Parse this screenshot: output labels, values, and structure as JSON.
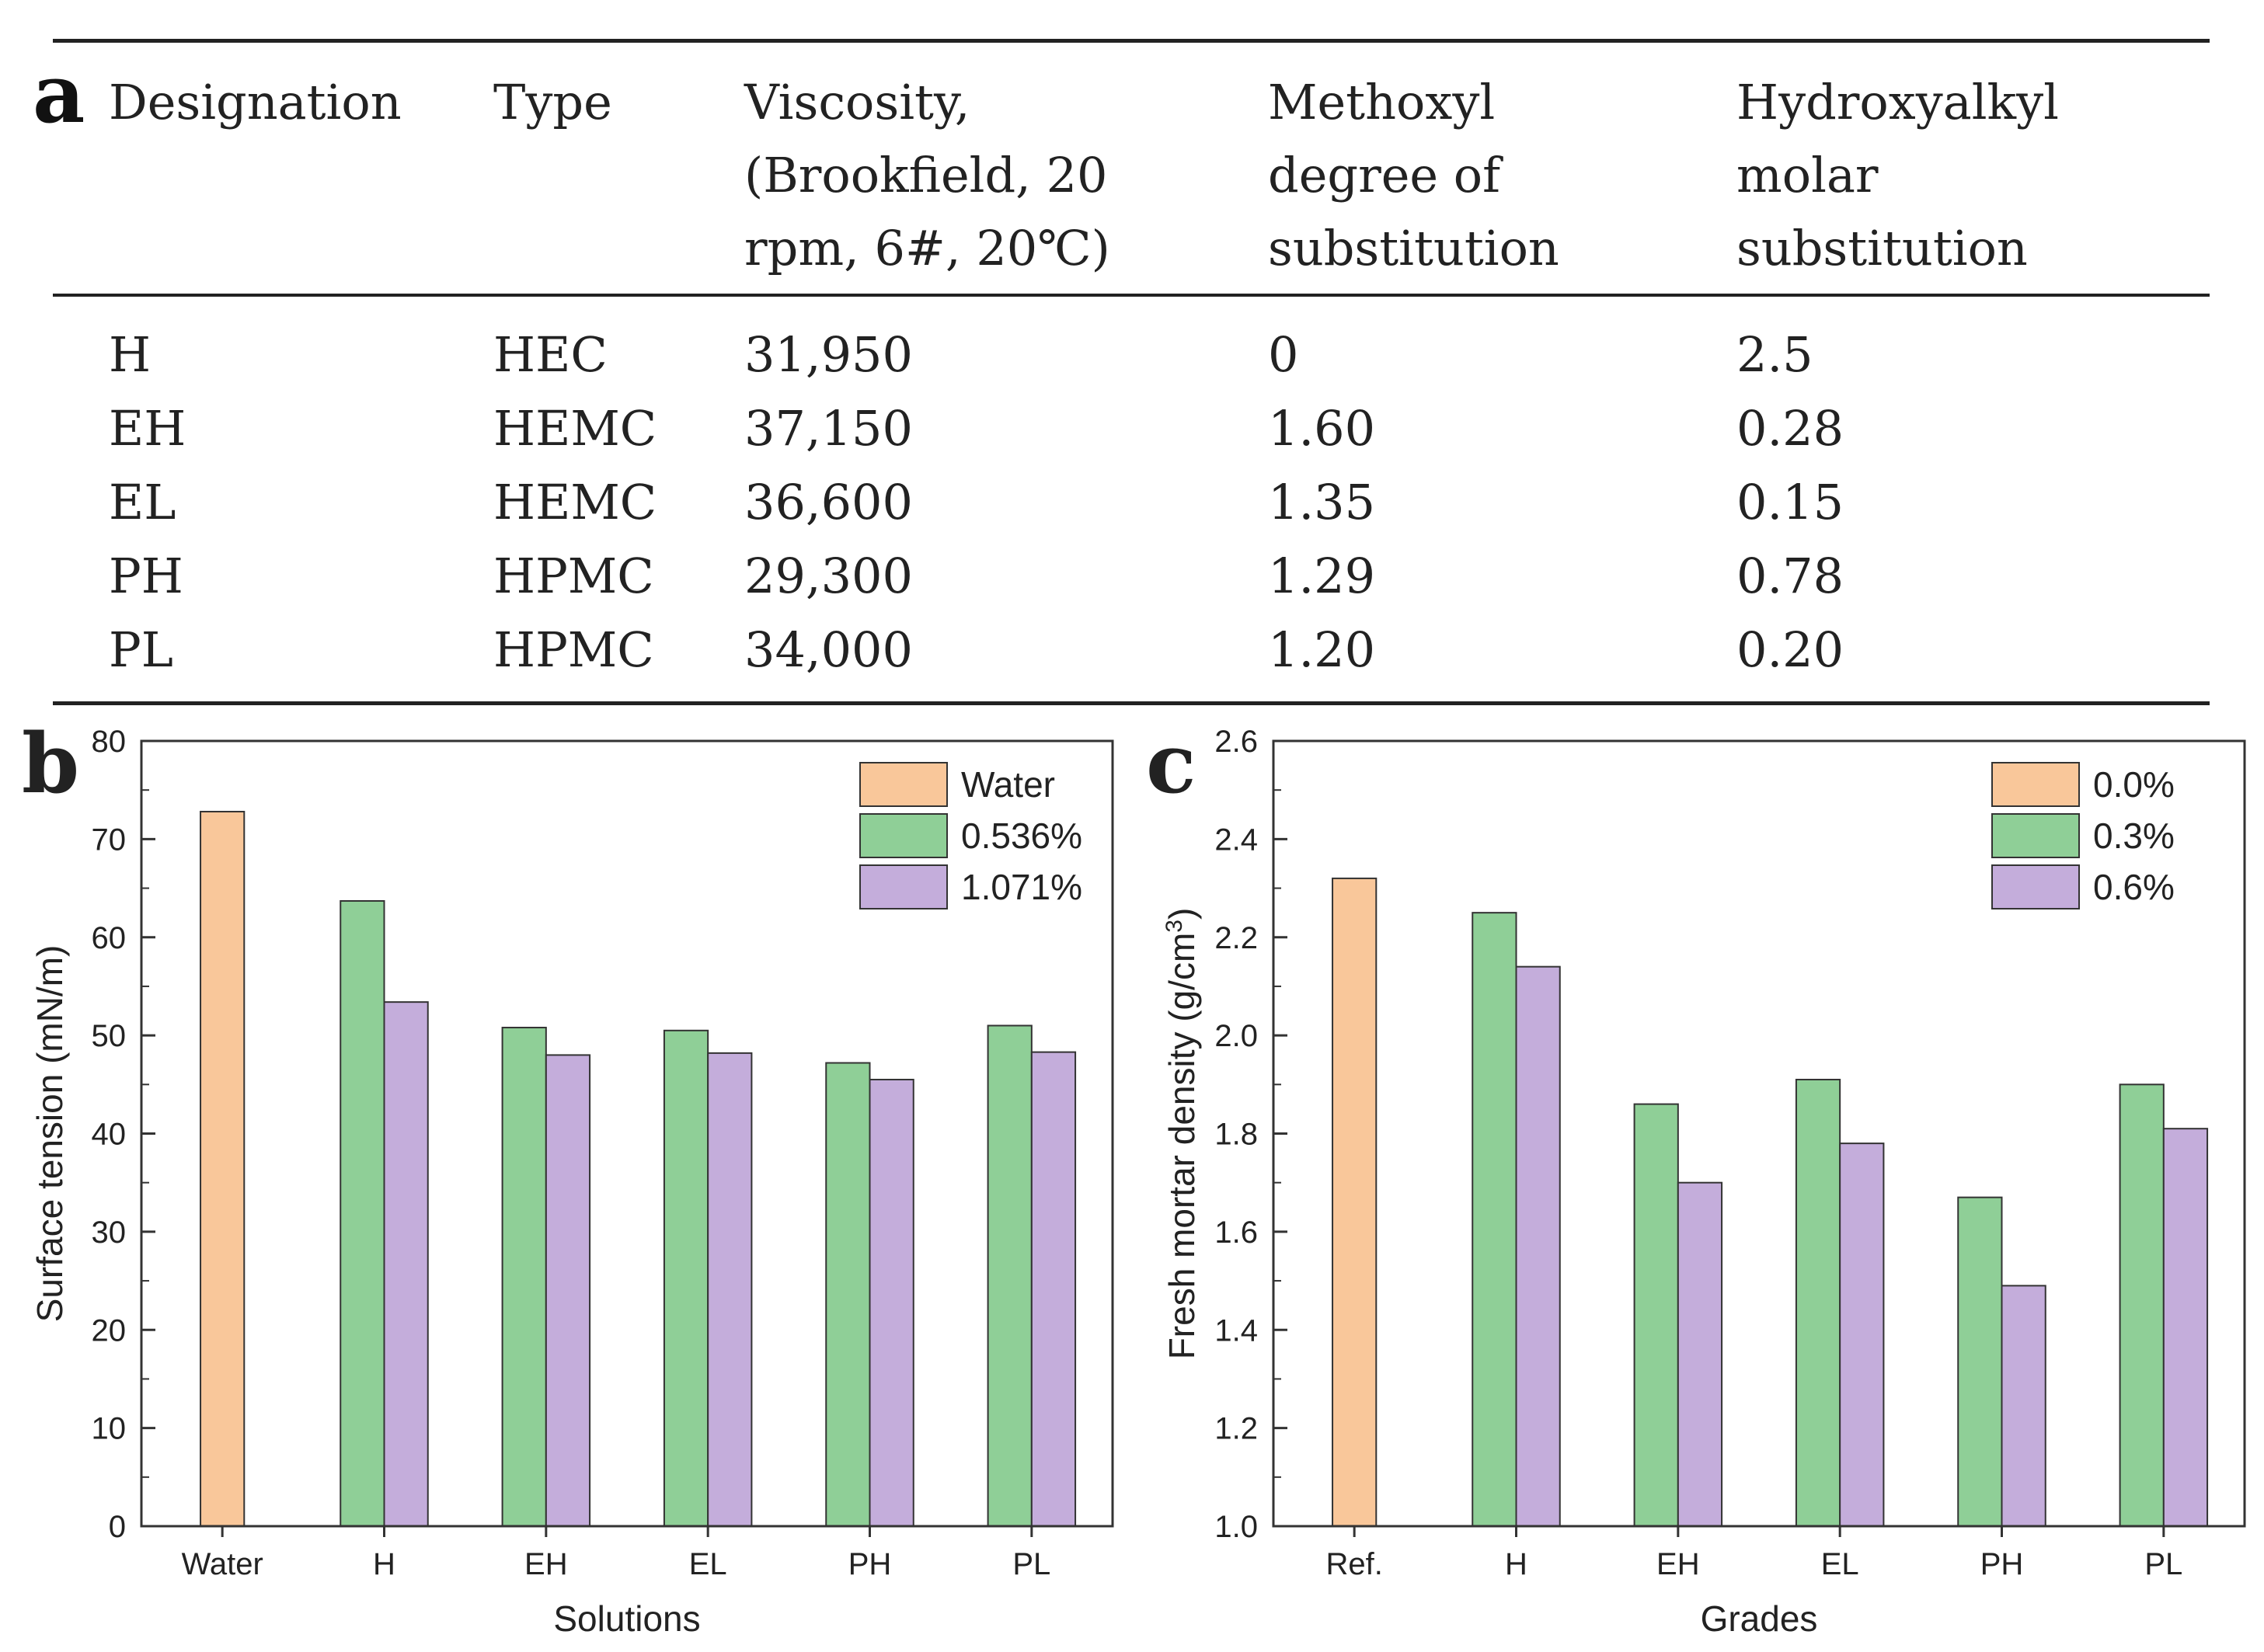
{
  "panel_a": {
    "letter": "a",
    "headers": [
      "Designation",
      "Type",
      "Viscosity,\n(Brookfield, 20\nrpm, 6#, 20℃)",
      "Methoxyl\ndegree of\nsubstitution",
      "Hydroxyalkyl\nmolar\nsubstitution"
    ],
    "rows": [
      [
        "H",
        "HEC",
        "31,950",
        "0",
        "2.5"
      ],
      [
        "EH",
        "HEMC",
        "37,150",
        "1.60",
        "0.28"
      ],
      [
        "EL",
        "HEMC",
        "36,600",
        "1.35",
        "0.15"
      ],
      [
        "PH",
        "HPMC",
        "29,300",
        "1.29",
        "0.78"
      ],
      [
        "PL",
        "HPMC",
        "34,000",
        "1.20",
        "0.20"
      ]
    ]
  },
  "chart_data": [
    {
      "panel": "b",
      "type": "bar",
      "xlabel": "Solutions",
      "ylabel": "Surface tension (mN/m)",
      "ylim": [
        0,
        80
      ],
      "yticks": [
        "0",
        "10",
        "20",
        "30",
        "40",
        "50",
        "60",
        "70",
        "80"
      ],
      "categories": [
        "Water",
        "H",
        "EH",
        "EL",
        "PH",
        "PL"
      ],
      "legend_position": "top-right",
      "grid": false,
      "series": [
        {
          "name": "Water",
          "color": "#f9c79a",
          "values": [
            72.8,
            null,
            null,
            null,
            null,
            null
          ]
        },
        {
          "name": "0.536%",
          "color": "#8fcf97",
          "values": [
            null,
            63.7,
            50.8,
            50.5,
            47.2,
            51.0
          ]
        },
        {
          "name": "1.071%",
          "color": "#c4addb",
          "values": [
            null,
            53.4,
            48.0,
            48.2,
            45.5,
            48.3
          ]
        }
      ]
    },
    {
      "panel": "c",
      "type": "bar",
      "xlabel": "Grades",
      "ylabel": "Fresh mortar density (g/cm³)",
      "ylim": [
        1.0,
        2.6
      ],
      "yticks": [
        "1.0",
        "1.2",
        "1.4",
        "1.6",
        "1.8",
        "2.0",
        "2.2",
        "2.4",
        "2.6"
      ],
      "categories": [
        "Ref.",
        "H",
        "EH",
        "EL",
        "PH",
        "PL"
      ],
      "legend_position": "top-right",
      "grid": false,
      "series": [
        {
          "name": "0.0%",
          "color": "#f9c79a",
          "values": [
            2.32,
            null,
            null,
            null,
            null,
            null
          ]
        },
        {
          "name": "0.3%",
          "color": "#8fcf97",
          "values": [
            null,
            2.25,
            1.86,
            1.91,
            1.67,
            1.9
          ]
        },
        {
          "name": "0.6%",
          "color": "#c4addb",
          "values": [
            null,
            2.14,
            1.7,
            1.78,
            1.49,
            1.81
          ]
        }
      ]
    }
  ]
}
